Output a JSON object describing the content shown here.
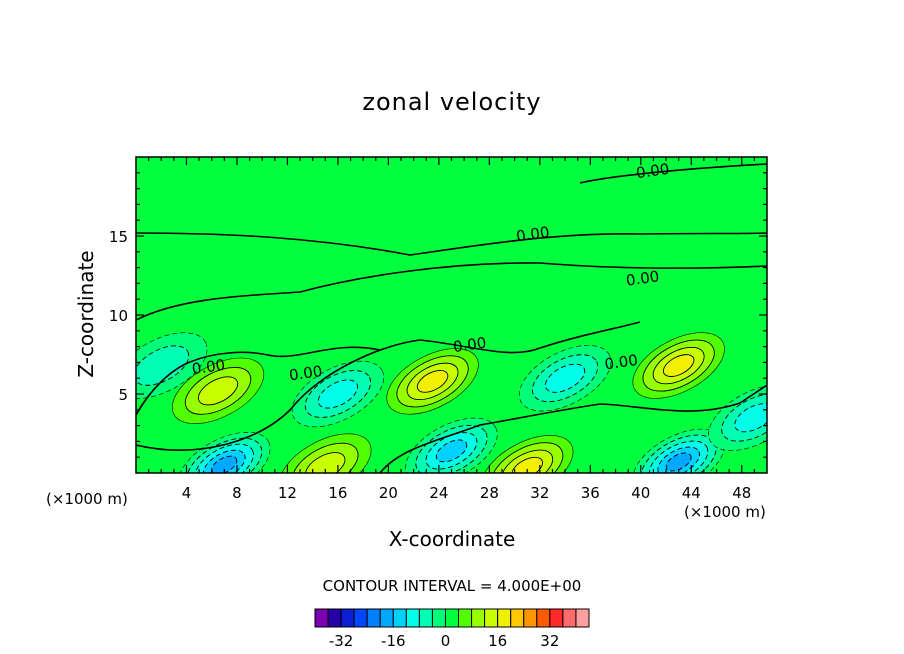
{
  "chart_data": {
    "type": "heatmap",
    "subtype": "filled-contour",
    "title": "zonal velocity",
    "xlabel": "X-coordinate",
    "ylabel": "Z-coordinate",
    "x_unit_label_left": "(×1000 m)",
    "x_unit_label_right": "(×1000 m)",
    "xlim": [
      0,
      50
    ],
    "ylim": [
      0,
      20
    ],
    "x_ticks": [
      4,
      8,
      12,
      16,
      20,
      24,
      28,
      32,
      36,
      40,
      44,
      48
    ],
    "y_ticks": [
      5,
      10,
      15
    ],
    "contour_interval_label": "CONTOUR INTERVAL = 4.000E+00",
    "contour_interval": 4,
    "contour_line_label": "0.00",
    "colorbar": {
      "levels": [
        -40,
        -36,
        -32,
        -28,
        -24,
        -20,
        -16,
        -12,
        -8,
        -4,
        0,
        4,
        8,
        12,
        16,
        20,
        24,
        28,
        32,
        36,
        40
      ],
      "colors": [
        "#7a00b0",
        "#2800a8",
        "#0a1ed2",
        "#0046ff",
        "#0080ff",
        "#00a8ff",
        "#00d2ff",
        "#00ffe8",
        "#00ffb4",
        "#00ff78",
        "#00ff3c",
        "#50ff00",
        "#96ff00",
        "#c8ff00",
        "#f0f000",
        "#ffc800",
        "#ff9600",
        "#ff5a00",
        "#ff2a2a",
        "#ff6a6a",
        "#ff9e9e"
      ],
      "tick_labels": [
        "-32",
        "-16",
        "0",
        "16",
        "32"
      ],
      "tick_values": [
        -32,
        -16,
        0,
        16,
        32
      ]
    },
    "features": [
      {
        "kind": "max",
        "x": 6.5,
        "z": 5.2,
        "value": 12
      },
      {
        "kind": "max",
        "x": 23.5,
        "z": 5.8,
        "value": 16
      },
      {
        "kind": "max",
        "x": 43,
        "z": 6.8,
        "value": 16
      },
      {
        "kind": "min",
        "x": 16,
        "z": 5.0,
        "value": -12
      },
      {
        "kind": "min",
        "x": 34,
        "z": 6.0,
        "value": -12
      },
      {
        "kind": "min",
        "x": 2,
        "z": 6.8,
        "value": -8
      },
      {
        "kind": "min",
        "x": 7,
        "z": 0.5,
        "value": -20
      },
      {
        "kind": "min",
        "x": 25,
        "z": 1.4,
        "value": -16
      },
      {
        "kind": "min",
        "x": 43,
        "z": 0.7,
        "value": -20
      },
      {
        "kind": "max",
        "x": 15,
        "z": 0.4,
        "value": 12
      },
      {
        "kind": "max",
        "x": 31,
        "z": 0.3,
        "value": 16
      },
      {
        "kind": "min",
        "x": 49,
        "z": 3.5,
        "value": -12
      }
    ]
  }
}
